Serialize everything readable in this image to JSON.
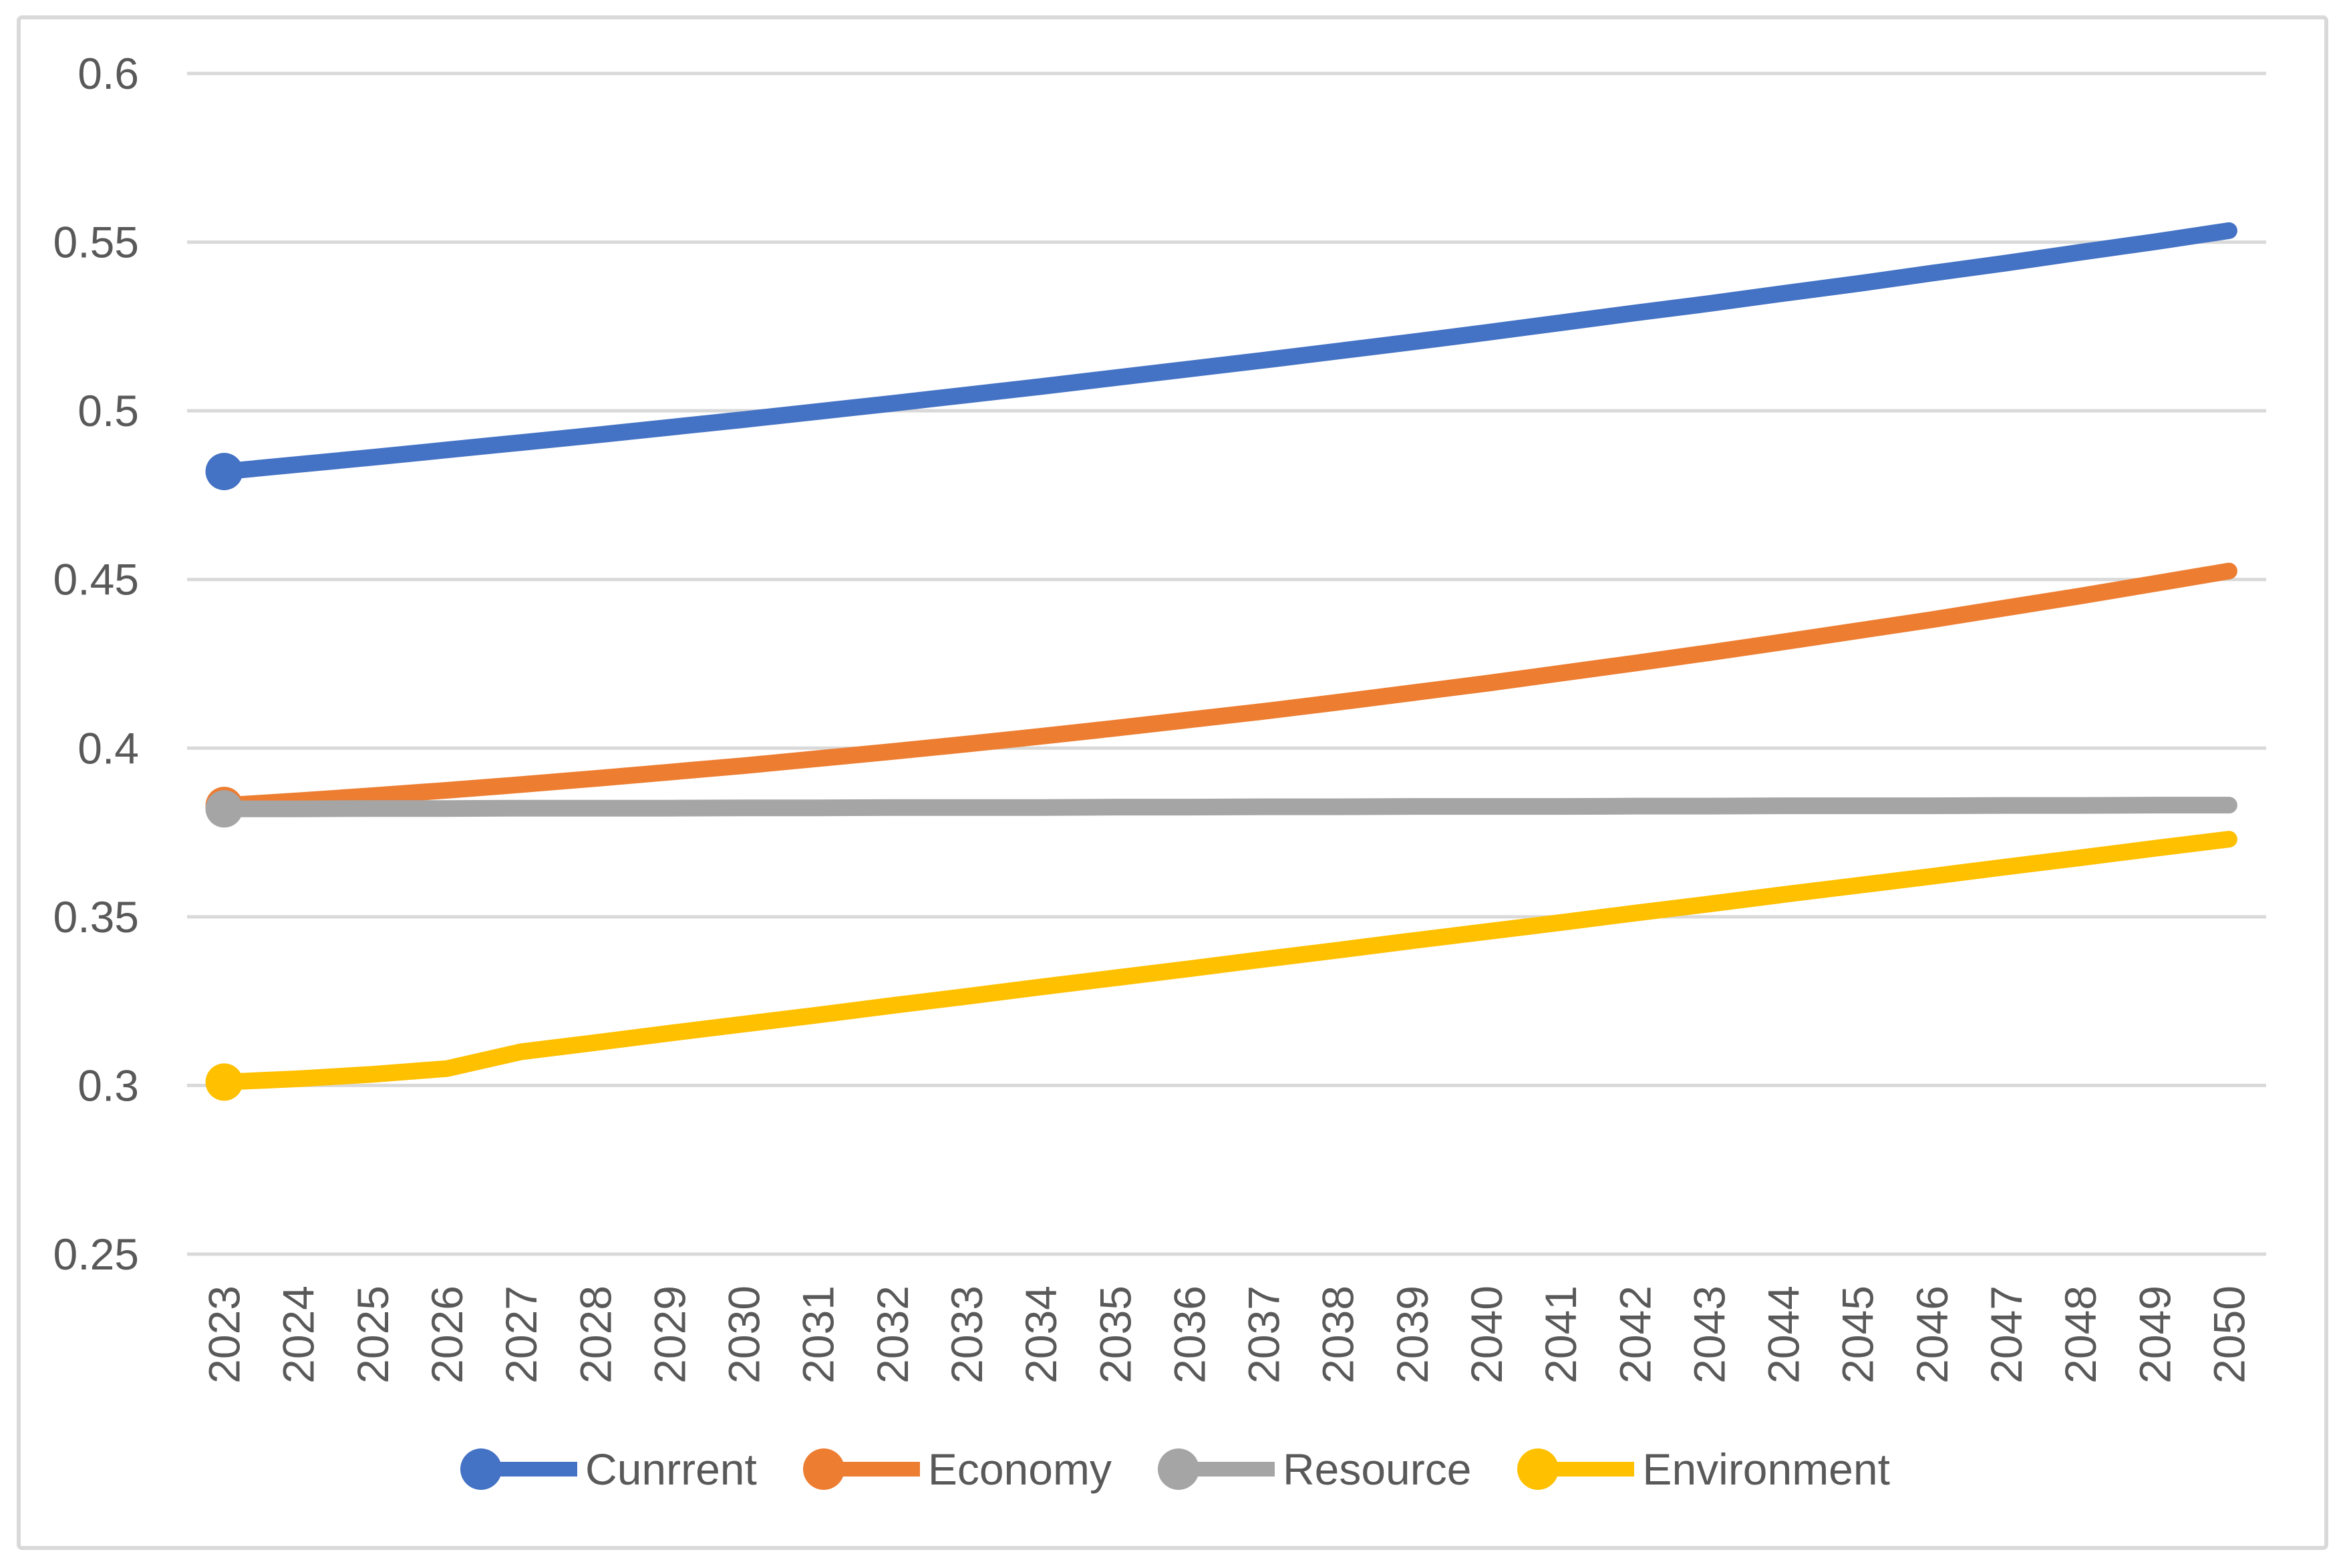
{
  "chart_data": {
    "type": "line",
    "title": "",
    "xlabel": "",
    "ylabel": "",
    "x": [
      "2023",
      "2024",
      "2025",
      "2026",
      "2027",
      "2028",
      "2029",
      "2030",
      "2031",
      "2032",
      "2033",
      "2034",
      "2035",
      "2036",
      "2037",
      "2038",
      "2039",
      "2040",
      "2041",
      "2042",
      "2043",
      "2044",
      "2045",
      "2046",
      "2047",
      "2048",
      "2049",
      "2050"
    ],
    "series": [
      {
        "name": "Cunrrent",
        "color": "#4472C4",
        "marker": "circle-first-point",
        "values": [
          0.482,
          0.4841,
          0.4862,
          0.4884,
          0.4906,
          0.4928,
          0.4951,
          0.4974,
          0.4998,
          0.5022,
          0.5047,
          0.5072,
          0.5098,
          0.5124,
          0.515,
          0.5177,
          0.5204,
          0.5232,
          0.5261,
          0.529,
          0.5318,
          0.5348,
          0.5377,
          0.5408,
          0.5438,
          0.547,
          0.5501,
          0.5534
        ]
      },
      {
        "name": "Economy",
        "color": "#ED7D31",
        "marker": "circle-first-point",
        "values": [
          0.383,
          0.3844,
          0.3859,
          0.3875,
          0.3892,
          0.391,
          0.3929,
          0.3948,
          0.3969,
          0.399,
          0.4012,
          0.4035,
          0.4059,
          0.4084,
          0.4109,
          0.4136,
          0.4164,
          0.4192,
          0.4222,
          0.4252,
          0.4283,
          0.4315,
          0.4348,
          0.4381,
          0.4416,
          0.4451,
          0.4488,
          0.4525
        ]
      },
      {
        "name": "Resource",
        "color": "#A5A5A5",
        "marker": "circle-first-point",
        "values": [
          0.382,
          0.382,
          0.3821,
          0.3821,
          0.3822,
          0.3822,
          0.3822,
          0.3823,
          0.3823,
          0.3824,
          0.3824,
          0.3824,
          0.3825,
          0.3825,
          0.3826,
          0.3826,
          0.3827,
          0.3827,
          0.3827,
          0.3828,
          0.3828,
          0.3829,
          0.3829,
          0.3829,
          0.383,
          0.383,
          0.3831,
          0.3831
        ]
      },
      {
        "name": "Environment",
        "color": "#FFC000",
        "marker": "circle-first-point",
        "values": [
          0.301,
          0.302,
          0.3033,
          0.305,
          0.31,
          0.3127,
          0.3155,
          0.3182,
          0.3209,
          0.3237,
          0.3264,
          0.3292,
          0.3319,
          0.3346,
          0.3374,
          0.3401,
          0.3429,
          0.3456,
          0.3483,
          0.3511,
          0.3538,
          0.3566,
          0.3593,
          0.362,
          0.3648,
          0.3675,
          0.3703,
          0.373
        ]
      }
    ],
    "ylim": [
      0.25,
      0.6
    ],
    "yticks": [
      0.25,
      0.3,
      0.35,
      0.4,
      0.45,
      0.5,
      0.55,
      0.6
    ],
    "ytick_labels": [
      "0.25",
      "0.3",
      "0.35",
      "0.4",
      "0.45",
      "0.5",
      "0.55",
      "0.6"
    ],
    "x_tick_rotation_degrees": -90,
    "grid": "horizontal",
    "legend_position": "bottom",
    "colors": {
      "background": "#FFFFFF",
      "gridline": "#D9D9D9",
      "chart_border": "#D9D9D9",
      "axis_label": "#595959",
      "legend_label": "#595959"
    }
  }
}
